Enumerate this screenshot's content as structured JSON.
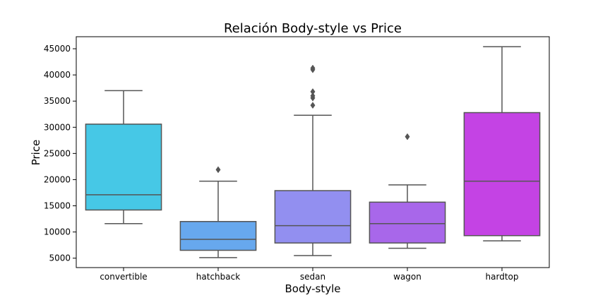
{
  "chart_data": {
    "type": "box",
    "title": "Relación Body-style vs Price",
    "xlabel": "Body-style",
    "ylabel": "Price",
    "ylim": [
      3200,
      47300
    ],
    "yticks": [
      5000,
      10000,
      15000,
      20000,
      25000,
      30000,
      35000,
      40000,
      45000
    ],
    "grid": false,
    "legend": "none",
    "categories": [
      "convertible",
      "hatchback",
      "sedan",
      "wagon",
      "hardtop"
    ],
    "boxes": [
      {
        "category": "convertible",
        "color": "#46c8e6",
        "whisker_low": 11600,
        "q1": 14200,
        "median": 17100,
        "q3": 30600,
        "whisker_high": 37000,
        "outliers": []
      },
      {
        "category": "hatchback",
        "color": "#67a8ee",
        "whisker_low": 5100,
        "q1": 6500,
        "median": 8600,
        "q3": 12000,
        "whisker_high": 19700,
        "outliers": [
          21900
        ]
      },
      {
        "category": "sedan",
        "color": "#928ff0",
        "whisker_low": 5500,
        "q1": 7900,
        "median": 11200,
        "q3": 17900,
        "whisker_high": 32300,
        "outliers": [
          34200,
          35600,
          36000,
          36800,
          41000,
          41300
        ]
      },
      {
        "category": "wagon",
        "color": "#a867ea",
        "whisker_low": 6900,
        "q1": 7900,
        "median": 11600,
        "q3": 15700,
        "whisker_high": 19000,
        "outliers": [
          28200
        ]
      },
      {
        "category": "hardtop",
        "color": "#c443e4",
        "whisker_low": 8300,
        "q1": 9300,
        "median": 19700,
        "q3": 32800,
        "whisker_high": 45400,
        "outliers": []
      }
    ]
  }
}
